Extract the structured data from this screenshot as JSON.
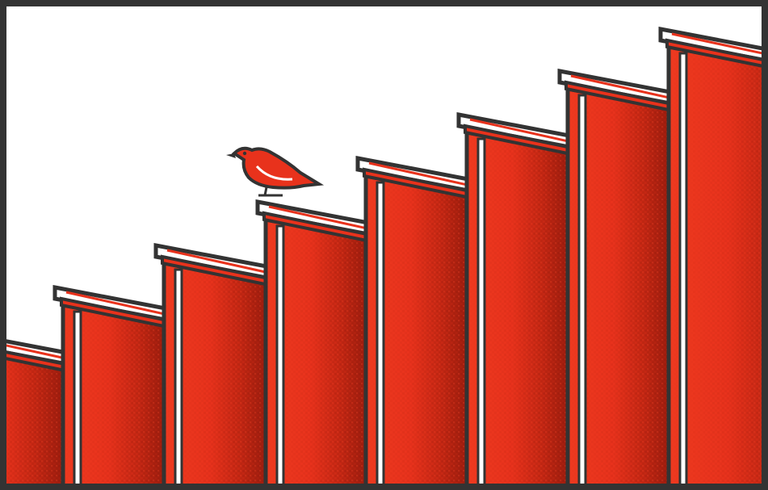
{
  "scene": {
    "subject": "illustration",
    "pillar_count": 8,
    "bird_count": 1
  },
  "colors": {
    "background": "#ffffff",
    "pillar_red": "#e8321c",
    "pillar_shadow_red": "#a8200f",
    "outline": "#333333",
    "highlight": "#ffffff"
  }
}
